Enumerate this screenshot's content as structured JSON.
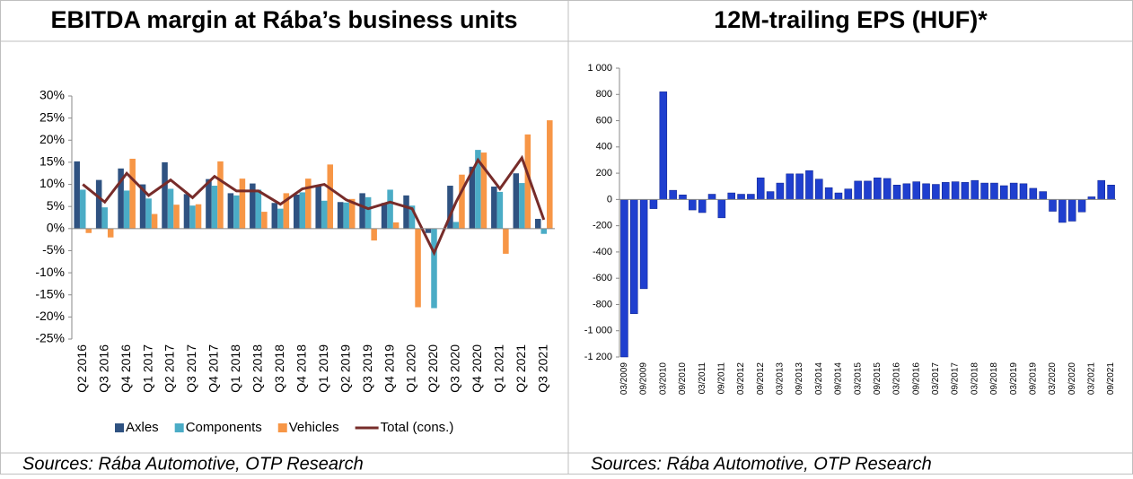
{
  "chart_data": [
    {
      "type": "bar",
      "title": "EBITDA margin at Rába’s business units",
      "source": "Sources: Rába Automotive, OTP Research",
      "categories": [
        "Q2 2016",
        "Q3 2016",
        "Q4 2016",
        "Q1 2017",
        "Q2 2017",
        "Q3 2017",
        "Q4 2017",
        "Q1 2018",
        "Q2 2018",
        "Q3 2018",
        "Q4 2018",
        "Q1 2019",
        "Q2 2019",
        "Q3 2019",
        "Q4 2019",
        "Q1 2020",
        "Q2 2020",
        "Q3 2020",
        "Q4 2020",
        "Q1 2021",
        "Q2 2021",
        "Q3 2021"
      ],
      "series": [
        {
          "name": "Axles",
          "color": "#2f5281",
          "values": [
            15.2,
            11,
            13.6,
            10,
            15,
            7.8,
            11.2,
            8,
            10.2,
            5.8,
            7.7,
            9.7,
            6,
            8,
            5.8,
            7.5,
            -1,
            9.7,
            14,
            9.5,
            12.5,
            2.2
          ]
        },
        {
          "name": "Components",
          "color": "#4bacc6",
          "values": [
            8.8,
            4.8,
            8.6,
            6.8,
            9,
            5.2,
            9.7,
            7.5,
            8.8,
            4.5,
            8.2,
            6.3,
            5.9,
            7.1,
            8.8,
            5.2,
            -18,
            1.5,
            17.8,
            8.3,
            10.3,
            -1.2
          ]
        },
        {
          "name": "Vehicles",
          "color": "#f79646",
          "values": [
            -1,
            -2,
            15.8,
            3.3,
            5.4,
            5.5,
            15.2,
            11.3,
            3.8,
            8,
            11.3,
            14.5,
            6.7,
            -2.7,
            1.4,
            -17.8,
            0,
            12.2,
            17.2,
            -5.7,
            21.3,
            24.5
          ]
        },
        {
          "name": "Total (cons.)",
          "type": "line",
          "color": "#772c2a",
          "values": [
            10,
            6,
            12.5,
            7.5,
            11,
            7,
            11.8,
            8.5,
            8.5,
            5.5,
            9,
            10,
            6.5,
            4.5,
            6,
            4.5,
            -5.5,
            6,
            15.5,
            9,
            16,
            2
          ]
        }
      ],
      "ylim": [
        -25,
        30
      ],
      "yticks": [
        {
          "value": -25,
          "label": "-25%"
        },
        {
          "value": -20,
          "label": "-20%"
        },
        {
          "value": -15,
          "label": "-15%"
        },
        {
          "value": -10,
          "label": "-10%"
        },
        {
          "value": -5,
          "label": "-5%"
        },
        {
          "value": 0,
          "label": "0%"
        },
        {
          "value": 5,
          "label": "5%"
        },
        {
          "value": 10,
          "label": "10%"
        },
        {
          "value": 15,
          "label": "15%"
        },
        {
          "value": 20,
          "label": "20%"
        },
        {
          "value": 25,
          "label": "25%"
        },
        {
          "value": 30,
          "label": "30%"
        }
      ],
      "grid": false,
      "legend": "bottom"
    },
    {
      "type": "bar",
      "title": "12M-trailing EPS (HUF)*",
      "source": "Sources: Rába Automotive, OTP Research",
      "categories": [
        "03/2009",
        null,
        "09/2009",
        null,
        "03/2010",
        null,
        "09/2010",
        null,
        "03/2011",
        null,
        "09/2011",
        null,
        "03/2012",
        null,
        "09/2012",
        null,
        "03/2013",
        null,
        "09/2013",
        null,
        "03/2014",
        null,
        "09/2014",
        null,
        "03/2015",
        null,
        "09/2015",
        null,
        "03/2016",
        null,
        "09/2016",
        null,
        "03/2017",
        null,
        "09/2017",
        null,
        "03/2018",
        null,
        "09/2018",
        null,
        "03/2019",
        null,
        "09/2019",
        null,
        "03/2020",
        null,
        "09/2020",
        null,
        "03/2021",
        null,
        "09/2021"
      ],
      "values": [
        -1200,
        -870,
        -680,
        -70,
        820,
        70,
        35,
        -80,
        -100,
        40,
        -140,
        50,
        40,
        40,
        165,
        60,
        125,
        195,
        195,
        220,
        155,
        90,
        50,
        80,
        140,
        140,
        165,
        160,
        110,
        120,
        135,
        120,
        115,
        130,
        135,
        130,
        145,
        125,
        125,
        105,
        125,
        120,
        85,
        60,
        -90,
        -175,
        -165,
        -95,
        20,
        145,
        110
      ],
      "color": "#1f3fcf",
      "ylim": [
        -1200,
        1000
      ],
      "yticks": [
        {
          "value": -1200,
          "label": "-1 200"
        },
        {
          "value": -1000,
          "label": "-1 000"
        },
        -800,
        -600,
        -400,
        -200,
        0,
        200,
        400,
        600,
        800,
        {
          "value": 1000,
          "label": "1 000"
        }
      ],
      "grid": false
    }
  ]
}
